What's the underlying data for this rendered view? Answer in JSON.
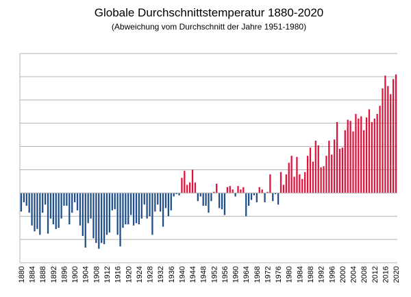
{
  "chart_data": {
    "type": "bar",
    "title": "Globale Durchschnittstemperatur 1880-2020",
    "subtitle": "(Abweichung vom Durchschnitt der Jahre 1951-1980)",
    "xlabel": "",
    "ylabel": "",
    "ylim": [
      -0.6,
      1.2
    ],
    "y_ticks": [
      -0.6,
      -0.4,
      -0.2,
      0,
      0.2,
      0.4,
      0.6,
      0.8,
      1.0,
      1.2
    ],
    "y_tick_labels_shown": false,
    "grid": true,
    "legend": "none",
    "colors": {
      "positive": "#dc143c",
      "negative": "#1f4e8c",
      "grid": "#b3b3b3"
    },
    "x_tick_labels": [
      "1880",
      "1884",
      "1888",
      "1892",
      "1896",
      "1900",
      "1904",
      "1908",
      "1912",
      "1916",
      "1920",
      "1924",
      "1928",
      "1932",
      "1936",
      "1940",
      "1944",
      "1948",
      "1952",
      "1956",
      "1960",
      "1964",
      "1968",
      "1972",
      "1976",
      "1980",
      "1984",
      "1988",
      "1992",
      "1996",
      "2000",
      "2004",
      "2008",
      "2012",
      "2016",
      "2020"
    ],
    "categories": [
      1880,
      1881,
      1882,
      1883,
      1884,
      1885,
      1886,
      1887,
      1888,
      1889,
      1890,
      1891,
      1892,
      1893,
      1894,
      1895,
      1896,
      1897,
      1898,
      1899,
      1900,
      1901,
      1902,
      1903,
      1904,
      1905,
      1906,
      1907,
      1908,
      1909,
      1910,
      1911,
      1912,
      1913,
      1914,
      1915,
      1916,
      1917,
      1918,
      1919,
      1920,
      1921,
      1922,
      1923,
      1924,
      1925,
      1926,
      1927,
      1928,
      1929,
      1930,
      1931,
      1932,
      1933,
      1934,
      1935,
      1936,
      1937,
      1938,
      1939,
      1940,
      1941,
      1942,
      1943,
      1944,
      1945,
      1946,
      1947,
      1948,
      1949,
      1950,
      1951,
      1952,
      1953,
      1954,
      1955,
      1956,
      1957,
      1958,
      1959,
      1960,
      1961,
      1962,
      1963,
      1964,
      1965,
      1966,
      1967,
      1968,
      1969,
      1970,
      1971,
      1972,
      1973,
      1974,
      1975,
      1976,
      1977,
      1978,
      1979,
      1980,
      1981,
      1982,
      1983,
      1984,
      1985,
      1986,
      1987,
      1988,
      1989,
      1990,
      1991,
      1992,
      1993,
      1994,
      1995,
      1996,
      1997,
      1998,
      1999,
      2000,
      2001,
      2002,
      2003,
      2004,
      2005,
      2006,
      2007,
      2008,
      2009,
      2010,
      2011,
      2012,
      2013,
      2014,
      2015,
      2016,
      2017,
      2018,
      2019,
      2020
    ],
    "values": [
      -0.16,
      -0.08,
      -0.11,
      -0.17,
      -0.28,
      -0.33,
      -0.31,
      -0.36,
      -0.17,
      -0.1,
      -0.35,
      -0.22,
      -0.27,
      -0.31,
      -0.3,
      -0.22,
      -0.11,
      -0.11,
      -0.27,
      -0.17,
      -0.08,
      -0.15,
      -0.28,
      -0.37,
      -0.47,
      -0.26,
      -0.22,
      -0.39,
      -0.43,
      -0.48,
      -0.43,
      -0.44,
      -0.36,
      -0.34,
      -0.15,
      -0.14,
      -0.36,
      -0.46,
      -0.3,
      -0.27,
      -0.27,
      -0.19,
      -0.28,
      -0.26,
      -0.27,
      -0.22,
      -0.1,
      -0.22,
      -0.2,
      -0.36,
      -0.16,
      -0.1,
      -0.16,
      -0.29,
      -0.13,
      -0.2,
      -0.15,
      -0.03,
      -0.01,
      -0.02,
      0.13,
      0.19,
      0.07,
      0.09,
      0.2,
      0.09,
      -0.07,
      -0.03,
      -0.11,
      -0.11,
      -0.17,
      -0.07,
      0.01,
      0.08,
      -0.13,
      -0.14,
      -0.19,
      0.05,
      0.06,
      0.03,
      -0.03,
      0.06,
      0.03,
      0.05,
      -0.2,
      -0.11,
      -0.06,
      -0.02,
      -0.08,
      0.05,
      0.03,
      -0.08,
      0.01,
      0.16,
      -0.07,
      -0.01,
      -0.1,
      0.18,
      0.07,
      0.16,
      0.26,
      0.32,
      0.14,
      0.31,
      0.16,
      0.12,
      0.18,
      0.32,
      0.39,
      0.27,
      0.45,
      0.41,
      0.22,
      0.23,
      0.32,
      0.45,
      0.33,
      0.46,
      0.61,
      0.38,
      0.39,
      0.54,
      0.63,
      0.62,
      0.53,
      0.68,
      0.64,
      0.66,
      0.54,
      0.65,
      0.72,
      0.61,
      0.64,
      0.68,
      0.75,
      0.9,
      1.01,
      0.92,
      0.85,
      0.98,
      1.02
    ]
  }
}
